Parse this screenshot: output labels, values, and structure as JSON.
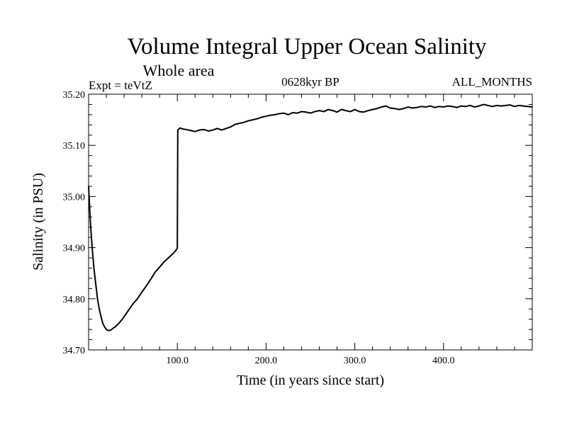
{
  "chart_data": {
    "type": "line",
    "title": "Volume Integral Upper Ocean Salinity",
    "subtitle": "Whole area",
    "annotations": {
      "left": "Expt = teVtZ",
      "center": "0628kyr BP",
      "right": "ALL_MONTHS"
    },
    "xlabel": "Time (in years since start)",
    "ylabel": "Salinity (in PSU)",
    "xlim": [
      0,
      500
    ],
    "ylim": [
      34.7,
      35.2
    ],
    "x_ticks": [
      100,
      200,
      300,
      400
    ],
    "x_tick_labels": [
      "100.0",
      "200.0",
      "300.0",
      "400.0"
    ],
    "y_ticks": [
      34.7,
      34.8,
      34.9,
      35.0,
      35.1,
      35.2
    ],
    "y_tick_labels": [
      "34.70",
      "34.80",
      "34.90",
      "35.00",
      "35.10",
      "35.20"
    ],
    "grid": false,
    "line_color": "#000000",
    "series": [
      {
        "x": [
          0,
          2,
          4,
          6,
          8,
          10,
          12,
          14,
          16,
          18,
          20,
          22,
          24,
          26,
          28,
          30,
          34,
          38,
          42,
          46,
          50,
          55,
          60,
          65,
          70,
          75,
          80,
          85,
          90,
          95,
          99.5,
          100,
          100.5,
          103,
          106,
          110,
          115,
          120,
          125,
          130,
          135,
          140,
          145,
          150,
          155,
          160,
          165,
          170,
          175,
          180,
          185,
          190,
          195,
          200,
          205,
          210,
          215,
          220,
          225,
          230,
          235,
          240,
          245,
          250,
          255,
          260,
          265,
          270,
          275,
          280,
          285,
          290,
          295,
          300,
          305,
          310,
          315,
          320,
          325,
          330,
          335,
          340,
          345,
          350,
          355,
          360,
          365,
          370,
          375,
          380,
          385,
          390,
          395,
          400,
          405,
          410,
          415,
          420,
          425,
          430,
          435,
          440,
          445,
          450,
          455,
          460,
          465,
          470,
          475,
          480,
          485,
          490,
          495,
          500
        ],
        "values": [
          35.02,
          34.95,
          34.9,
          34.86,
          34.83,
          34.8,
          34.78,
          34.765,
          34.752,
          34.745,
          34.74,
          34.738,
          34.738,
          34.74,
          34.743,
          34.745,
          34.752,
          34.76,
          34.77,
          34.78,
          34.79,
          34.8,
          34.813,
          34.825,
          34.838,
          34.852,
          34.862,
          34.872,
          34.88,
          34.888,
          34.897,
          34.9,
          35.13,
          35.134,
          35.132,
          35.131,
          35.129,
          35.127,
          35.13,
          35.131,
          35.128,
          35.13,
          35.133,
          35.13,
          35.133,
          35.136,
          35.141,
          35.143,
          35.145,
          35.148,
          35.15,
          35.152,
          35.155,
          35.157,
          35.159,
          35.16,
          35.162,
          35.163,
          35.16,
          35.164,
          35.163,
          35.166,
          35.165,
          35.163,
          35.166,
          35.168,
          35.166,
          35.17,
          35.168,
          35.165,
          35.17,
          35.168,
          35.166,
          35.17,
          35.166,
          35.165,
          35.168,
          35.17,
          35.172,
          35.175,
          35.177,
          35.173,
          35.172,
          35.17,
          35.172,
          35.175,
          35.173,
          35.174,
          35.176,
          35.175,
          35.177,
          35.174,
          35.176,
          35.175,
          35.177,
          35.176,
          35.174,
          35.177,
          35.176,
          35.178,
          35.175,
          35.177,
          35.18,
          35.178,
          35.176,
          35.178,
          35.177,
          35.178,
          35.179,
          35.176,
          35.178,
          35.177,
          35.176,
          35.175
        ]
      }
    ]
  }
}
